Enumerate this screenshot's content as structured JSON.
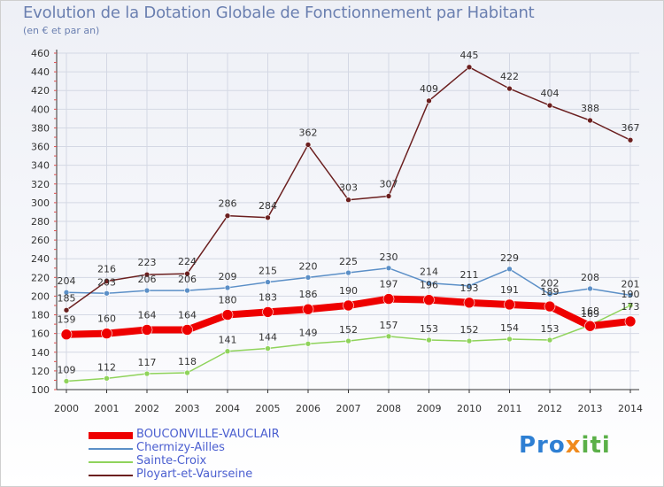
{
  "header": {
    "title": "Evolution de la Dotation Globale de Fonctionnement par Habitant",
    "subtitle": "(en € et par an)"
  },
  "brand": {
    "logo_text": "Proxiti"
  },
  "colors": {
    "BOUCONVILLE-VAUCLAIR": "#ee0000",
    "Chermizy-Ailles": "#5b8fc7",
    "Sainte-Croix": "#8fd35b",
    "Ployart-et-Vaurseine": "#6b1f1f"
  },
  "chart_data": {
    "type": "line",
    "title": "Evolution de la Dotation Globale de Fonctionnement par Habitant",
    "subtitle": "(en € et par an)",
    "xlabel": "",
    "ylabel": "",
    "ylim": [
      100,
      460
    ],
    "y_ticks": [
      100,
      120,
      140,
      160,
      180,
      200,
      220,
      240,
      260,
      280,
      300,
      320,
      340,
      360,
      380,
      400,
      420,
      440,
      460
    ],
    "grid": true,
    "legend_position": "bottom-left",
    "categories": [
      "2000",
      "2001",
      "2002",
      "2003",
      "2004",
      "2005",
      "2006",
      "2007",
      "2008",
      "2009",
      "2010",
      "2011",
      "2012",
      "2013",
      "2014"
    ],
    "series": [
      {
        "name": "Sainte-Croix",
        "values": [
          109,
          112,
          117,
          118,
          141,
          144,
          149,
          152,
          157,
          153,
          152,
          154,
          153,
          169,
          190
        ]
      },
      {
        "name": "Chermizy-Ailles",
        "values": [
          204,
          203,
          206,
          206,
          209,
          215,
          220,
          225,
          230,
          214,
          211,
          229,
          202,
          208,
          201
        ]
      },
      {
        "name": "Ployart-et-Vaurseine",
        "values": [
          185,
          216,
          223,
          224,
          286,
          284,
          362,
          303,
          307,
          409,
          445,
          422,
          404,
          388,
          367
        ]
      },
      {
        "name": "BOUCONVILLE-VAUCLAIR",
        "values": [
          159,
          160,
          164,
          164,
          180,
          183,
          186,
          190,
          197,
          196,
          193,
          191,
          189,
          168,
          173
        ]
      }
    ]
  }
}
